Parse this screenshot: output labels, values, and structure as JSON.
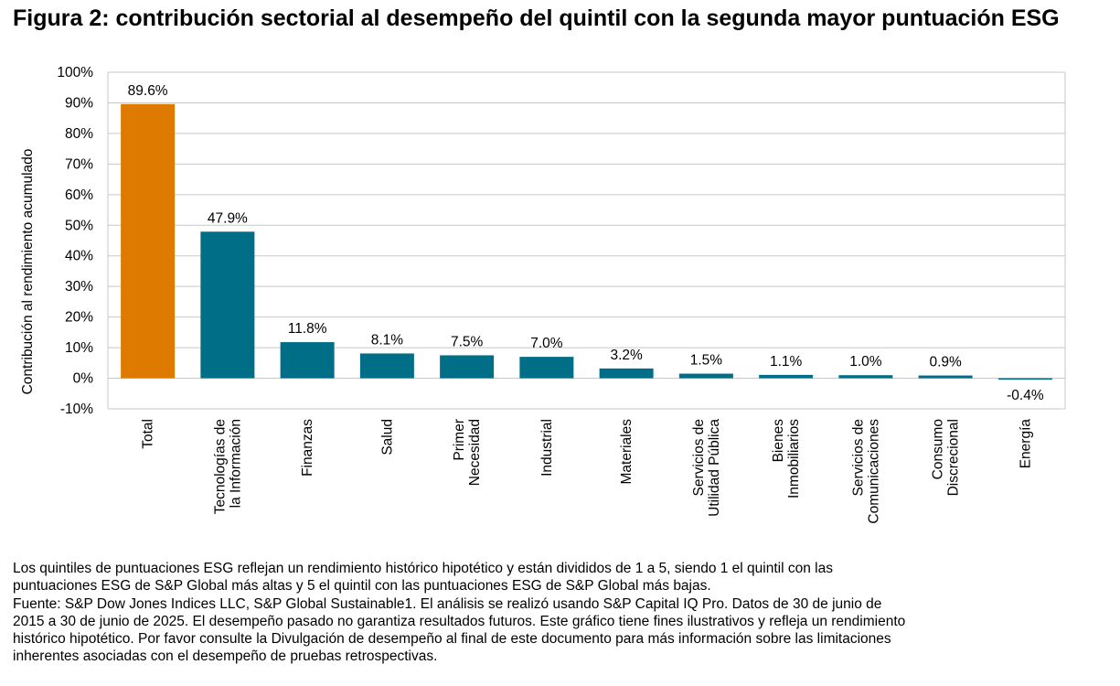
{
  "title": "Figura 2: contribución sectorial al desempeño del quintil con la segunda mayor puntuación ESG",
  "chart_data": {
    "type": "bar",
    "title": "",
    "xlabel": "",
    "ylabel": "Contribución al rendimiento acumulado",
    "ylim": [
      -10,
      100
    ],
    "yticks": [
      "-10%",
      "0%",
      "10%",
      "20%",
      "30%",
      "40%",
      "50%",
      "60%",
      "70%",
      "80%",
      "90%",
      "100%"
    ],
    "grid": true,
    "categories": [
      [
        "Total"
      ],
      [
        "Tecnologías de",
        "la Información"
      ],
      [
        "Finanzas"
      ],
      [
        "Salud"
      ],
      [
        "Primer",
        "Necesidad"
      ],
      [
        "Industrial"
      ],
      [
        "Materiales"
      ],
      [
        "Servicios de",
        "Utilidad Pública"
      ],
      [
        "Bienes",
        "Inmobiliarios"
      ],
      [
        "Servicios de",
        "Comunicaciones"
      ],
      [
        "Consumo",
        "Discrecional"
      ],
      [
        "Energía"
      ]
    ],
    "values": [
      89.6,
      47.9,
      11.8,
      8.1,
      7.5,
      7.0,
      3.2,
      1.5,
      1.1,
      1.0,
      0.9,
      -0.4
    ],
    "data_labels": [
      "89.6%",
      "47.9%",
      "11.8%",
      "8.1%",
      "7.5%",
      "7.0%",
      "3.2%",
      "1.5%",
      "1.1%",
      "1.0%",
      "0.9%",
      "-0.4%"
    ],
    "colors": {
      "total": "#DE7A00",
      "sector": "#006E87"
    }
  },
  "notes": [
    "Los quintiles de puntuaciones ESG reflejan un rendimiento histórico hipotético y están divididos de 1 a 5, siendo 1 el quintil con las",
    "puntuaciones ESG de S&P Global más altas y 5 el quintil con las puntuaciones ESG de S&P Global más bajas.",
    "Fuente: S&P Dow Jones Indices LLC, S&P Global Sustainable1. El análisis se realizó usando S&P Capital IQ Pro. Datos de 30 de junio de",
    "2015 a 30 de junio de 2025. El desempeño pasado no garantiza resultados futuros. Este gráfico tiene fines ilustrativos y refleja un rendimiento",
    "histórico hipotético. Por favor consulte la Divulgación de desempeño al final de este documento para más información sobre las limitaciones",
    "inherentes asociadas con el desempeño de pruebas retrospectivas."
  ]
}
